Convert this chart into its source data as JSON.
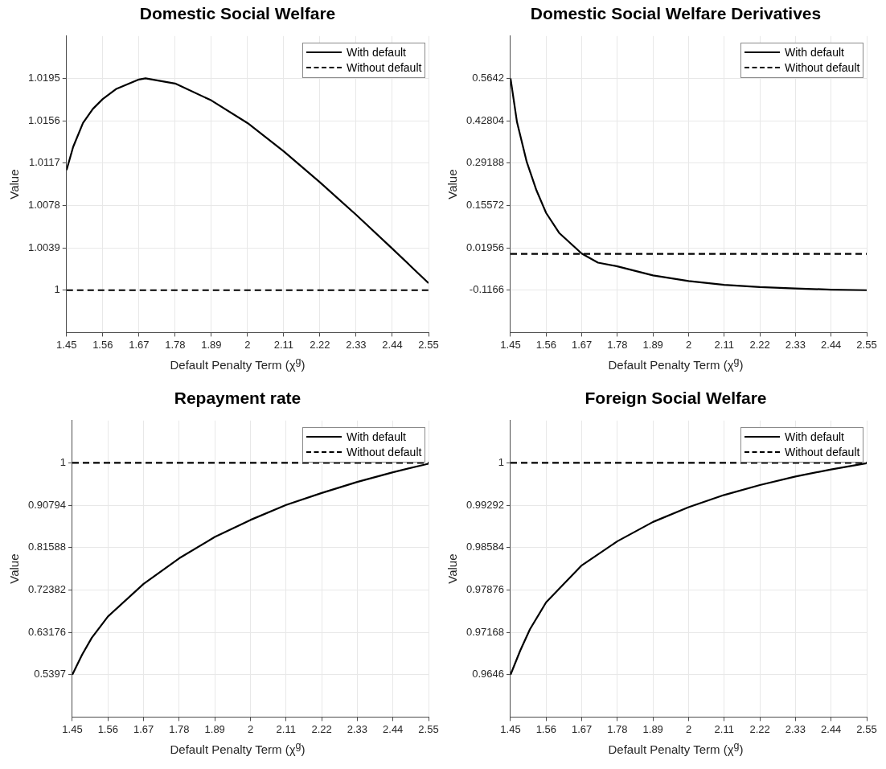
{
  "chart_data": [
    {
      "type": "line",
      "title": "Domestic Social Welfare",
      "xlabel": "Default Penalty Term (χ$^{g}$)",
      "ylabel": "Value",
      "xlim": [
        1.45,
        2.55
      ],
      "xticks": [
        1.45,
        1.56,
        1.67,
        1.78,
        1.89,
        2,
        2.11,
        2.22,
        2.33,
        2.44,
        2.55
      ],
      "ylim": [
        0.9961,
        1.0234
      ],
      "yticks": [
        1,
        1.0039,
        1.0078,
        1.0117,
        1.0156,
        1.0195
      ],
      "grid": true,
      "legend": "top right",
      "marker": "none",
      "series": [
        {
          "name": "With default",
          "color": "#000000",
          "line_style": "solid",
          "x": [
            1.45,
            1.47,
            1.5,
            1.53,
            1.56,
            1.6,
            1.67,
            1.69,
            1.78,
            1.89,
            2,
            2.11,
            2.22,
            2.33,
            2.44,
            2.55
          ],
          "values": [
            1.01105,
            1.01318,
            1.01539,
            1.01669,
            1.0176,
            1.01851,
            1.0194,
            1.0195,
            1.01903,
            1.01747,
            1.01539,
            1.01279,
            1.00993,
            1.00694,
            1.00382,
            1.00065
          ]
        },
        {
          "name": "Without default",
          "color": "#000000",
          "line_style": "dashed",
          "x": [
            1.45,
            2.55
          ],
          "values": [
            1,
            1
          ]
        }
      ]
    },
    {
      "type": "line",
      "title": "Domestic Social Welfare Derivatives",
      "xlabel": "Default Penalty Term (χ$^{g}$)",
      "ylabel": "Value",
      "xlim": [
        1.45,
        2.55
      ],
      "xticks": [
        1.45,
        1.56,
        1.67,
        1.78,
        1.89,
        2,
        2.11,
        2.22,
        2.33,
        2.44,
        2.55
      ],
      "ylim": [
        -0.25276,
        0.70036
      ],
      "yticks": [
        -0.1166,
        0.01956,
        0.15572,
        0.29188,
        0.42804,
        0.5642
      ],
      "grid": true,
      "legend": "top right",
      "marker": "none",
      "series": [
        {
          "name": "With default",
          "color": "#000000",
          "line_style": "solid",
          "x": [
            1.45,
            1.47,
            1.5,
            1.53,
            1.56,
            1.6,
            1.67,
            1.72,
            1.78,
            1.89,
            2,
            2.11,
            2.22,
            2.33,
            2.44,
            2.55
          ],
          "values": [
            0.5642,
            0.4237,
            0.2959,
            0.2046,
            0.1316,
            0.0677,
            0.0011,
            -0.0281,
            -0.0399,
            -0.0691,
            -0.0874,
            -0.0993,
            -0.1066,
            -0.1111,
            -0.1148,
            -0.1166
          ]
        },
        {
          "name": "Without default",
          "color": "#000000",
          "line_style": "dashed",
          "x": [
            1.45,
            2.55
          ],
          "values": [
            0,
            0
          ]
        }
      ]
    },
    {
      "type": "line",
      "title": "Repayment rate",
      "xlabel": "Default Penalty Term (χ$^{g}$)",
      "ylabel": "Value",
      "xlim": [
        1.45,
        2.55
      ],
      "xticks": [
        1.45,
        1.56,
        1.67,
        1.78,
        1.89,
        2,
        2.11,
        2.22,
        2.33,
        2.44,
        2.55
      ],
      "ylim": [
        0.44764,
        1.09206
      ],
      "yticks": [
        0.5397,
        0.63176,
        0.72382,
        0.81588,
        0.90794,
        1
      ],
      "grid": true,
      "legend": "top right",
      "marker": "none",
      "series": [
        {
          "name": "With default",
          "color": "#000000",
          "line_style": "solid",
          "x": [
            1.45,
            1.48,
            1.51,
            1.56,
            1.67,
            1.78,
            1.89,
            2,
            2.11,
            2.22,
            2.33,
            2.44,
            2.55
          ],
          "values": [
            0.5397,
            0.5829,
            0.6199,
            0.6662,
            0.7371,
            0.7927,
            0.839,
            0.876,
            0.9087,
            0.9346,
            0.9587,
            0.9797,
            0.9982
          ]
        },
        {
          "name": "Without default",
          "color": "#000000",
          "line_style": "dashed",
          "x": [
            1.45,
            2.55
          ],
          "values": [
            1,
            1
          ]
        }
      ]
    },
    {
      "type": "line",
      "title": "Foreign Social Welfare",
      "xlabel": "Default Penalty Term (χ$^{g}$)",
      "ylabel": "Value",
      "xlim": [
        1.45,
        2.55
      ],
      "xticks": [
        1.45,
        1.56,
        1.67,
        1.78,
        1.89,
        2,
        2.11,
        2.22,
        2.33,
        2.44,
        2.55
      ],
      "ylim": [
        0.95752,
        1.00708
      ],
      "yticks": [
        0.9646,
        0.97168,
        0.97876,
        0.98584,
        0.99292,
        1
      ],
      "grid": true,
      "legend": "top right",
      "marker": "none",
      "series": [
        {
          "name": "With default",
          "color": "#000000",
          "line_style": "solid",
          "x": [
            1.45,
            1.48,
            1.51,
            1.56,
            1.67,
            1.78,
            1.89,
            2,
            2.11,
            2.22,
            2.33,
            2.44,
            2.55
          ],
          "values": [
            0.9646,
            0.96863,
            0.97219,
            0.9767,
            0.98287,
            0.9869,
            0.99013,
            0.9926,
            0.99464,
            0.9963,
            0.99772,
            0.99891,
            0.99995
          ]
        },
        {
          "name": "Without default",
          "color": "#000000",
          "line_style": "dashed",
          "x": [
            1.45,
            2.55
          ],
          "values": [
            1,
            1
          ]
        }
      ]
    }
  ]
}
